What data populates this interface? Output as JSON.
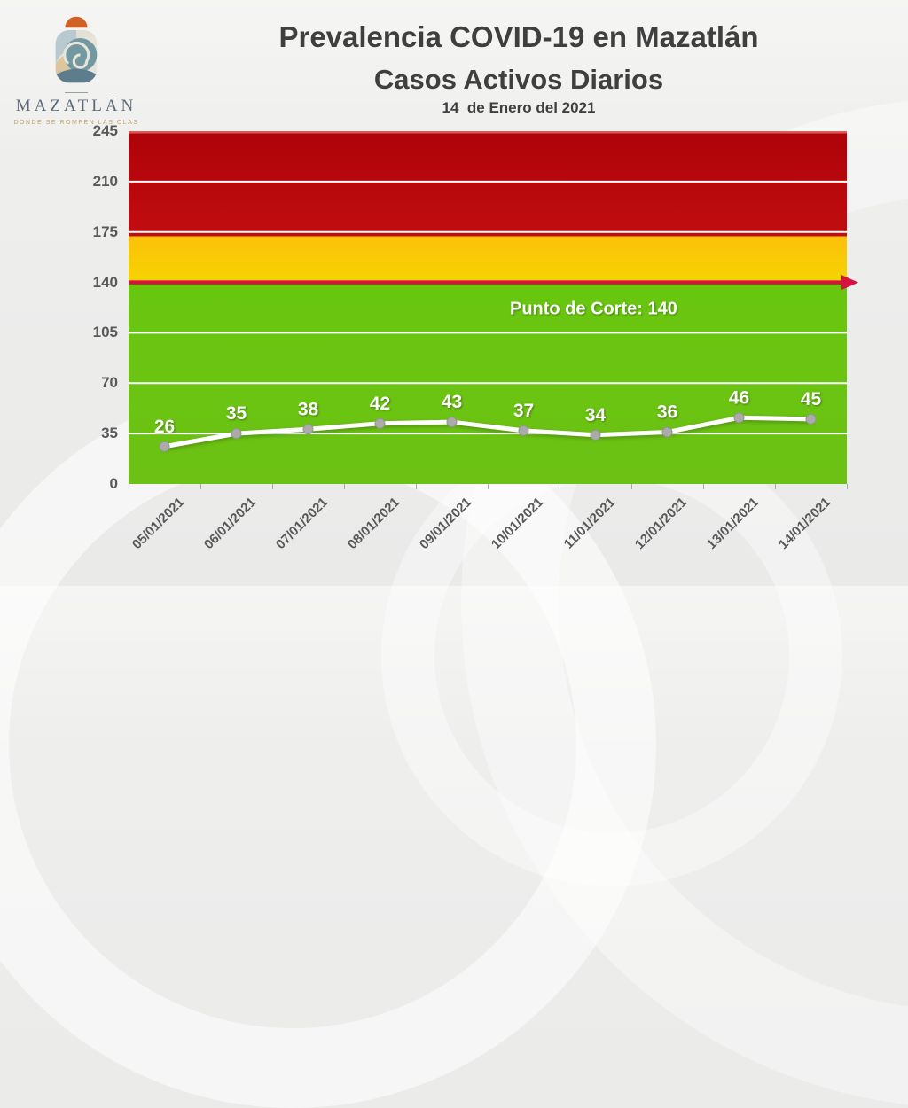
{
  "logo": {
    "brand": "MAZATLĀN",
    "tagline": "DONDE SE ROMPEN LAS OLAS",
    "colors": {
      "sun": "#cf6127",
      "shell_base": "#e8e4da",
      "light_blue": "#b9c9d0",
      "sand": "#dcc79c",
      "teal": "#7298a1",
      "pale": "#e3e0d6",
      "slate": "#5e7d8c",
      "wordmark": "#5d6b77",
      "tagline_color": "#c2a16c"
    }
  },
  "header": {
    "title": "Prevalencia COVID-19 en Mazatlán",
    "subtitle": "Casos Activos Diarios",
    "date": "14  de Enero del 2021"
  },
  "chart_data": {
    "type": "line",
    "title": "Casos Activos Diarios",
    "categories": [
      "05/01/2021",
      "06/01/2021",
      "07/01/2021",
      "08/01/2021",
      "09/01/2021",
      "10/01/2021",
      "11/01/2021",
      "12/01/2021",
      "13/01/2021",
      "14/01/2021"
    ],
    "series": [
      {
        "name": "Casos Activos Diarios",
        "values": [
          26,
          35,
          38,
          42,
          43,
          37,
          34,
          36,
          46,
          45
        ]
      }
    ],
    "ylim": [
      0,
      245
    ],
    "yticks": [
      0,
      35,
      70,
      105,
      140,
      175,
      210,
      245
    ],
    "grid": true,
    "legend": "none",
    "cutoff_line": {
      "value": 140,
      "label": "Punto de Corte: 140",
      "color": "#d8123f"
    },
    "zones": [
      {
        "name": "alerta-roja",
        "from": 172,
        "to": 245,
        "color_top": "#ad0309",
        "color_bottom": "#c20d10"
      },
      {
        "name": "alerta-amarilla",
        "from": 140,
        "to": 172,
        "color_top": "#fcc00b",
        "color_bottom": "#f6d400"
      },
      {
        "name": "zona-verde",
        "from": 0,
        "to": 140,
        "color_top": "#69c60f",
        "color_bottom": "#6cc114"
      }
    ],
    "line_color": "#ffffff",
    "marker_fill": "#ababab",
    "marker_stroke": "#949494",
    "gridline_color": "#ffffff",
    "top_border_color": "#dd5a5a",
    "axis_text_color": "#595959"
  }
}
